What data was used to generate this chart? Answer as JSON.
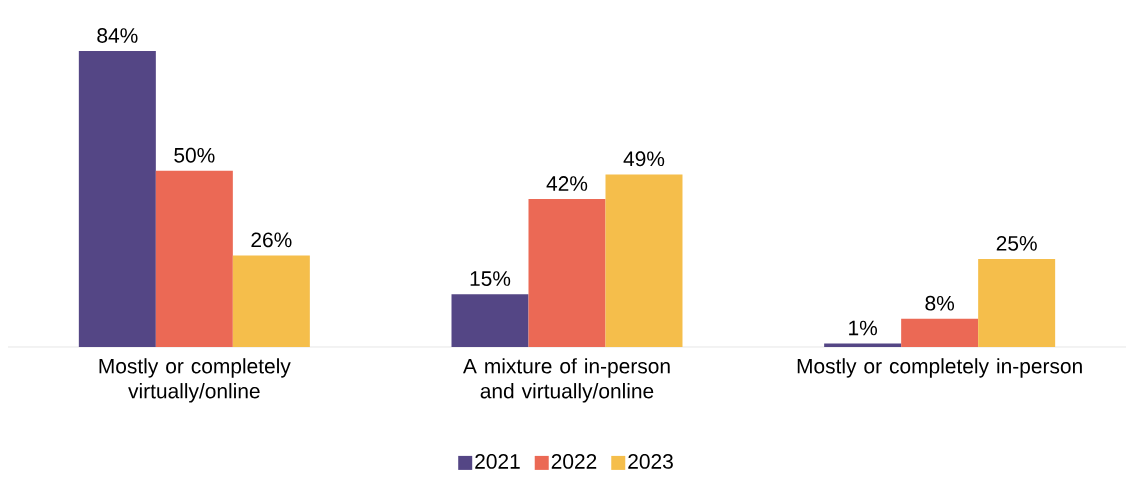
{
  "chart_data": {
    "type": "bar",
    "categories": [
      "Mostly or completely virtually/online",
      "A mixture of in-person and virtually/online",
      "Mostly or completely in-person"
    ],
    "series": [
      {
        "name": "2021",
        "color": "#544685",
        "values": [
          84,
          15,
          1
        ],
        "value_labels": [
          "84%",
          "15%",
          "1%"
        ]
      },
      {
        "name": "2022",
        "color": "#eb6955",
        "values": [
          50,
          42,
          8
        ],
        "value_labels": [
          "50%",
          "42%",
          "8%"
        ]
      },
      {
        "name": "2023",
        "color": "#f5be4b",
        "values": [
          26,
          49,
          25
        ],
        "value_labels": [
          "26%",
          "49%",
          "25%"
        ]
      }
    ],
    "legend": "bottom",
    "grid": false
  }
}
